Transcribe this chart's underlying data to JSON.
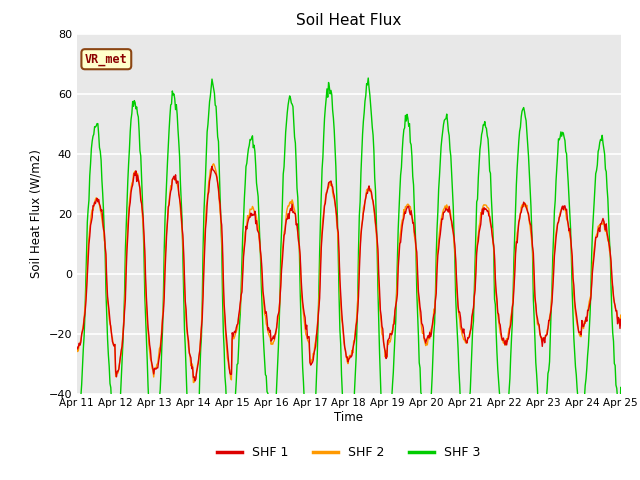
{
  "title": "Soil Heat Flux",
  "ylabel": "Soil Heat Flux (W/m2)",
  "xlabel": "Time",
  "ylim": [
    -40,
    80
  ],
  "yticks": [
    -40,
    -20,
    0,
    20,
    40,
    60,
    80
  ],
  "fig_bg": "#ffffff",
  "axes_bg": "#e8e8e8",
  "grid_color": "#ffffff",
  "shf1_color": "#dd0000",
  "shf2_color": "#ff9900",
  "shf3_color": "#00cc00",
  "legend_label1": "SHF 1",
  "legend_label2": "SHF 2",
  "legend_label3": "SHF 3",
  "annotation_text": "VR_met",
  "annotation_fg": "#8B0000",
  "annotation_bg": "#ffffcc",
  "annotation_edge": "#8B4513",
  "x_tick_labels": [
    "Apr 11",
    "Apr 12",
    "Apr 13",
    "Apr 14",
    "Apr 15",
    "Apr 16",
    "Apr 17",
    "Apr 18",
    "Apr 19",
    "Apr 20",
    "Apr 21",
    "Apr 22",
    "Apr 23",
    "Apr 24",
    "Apr 25"
  ],
  "n_days": 15,
  "seed": 42
}
